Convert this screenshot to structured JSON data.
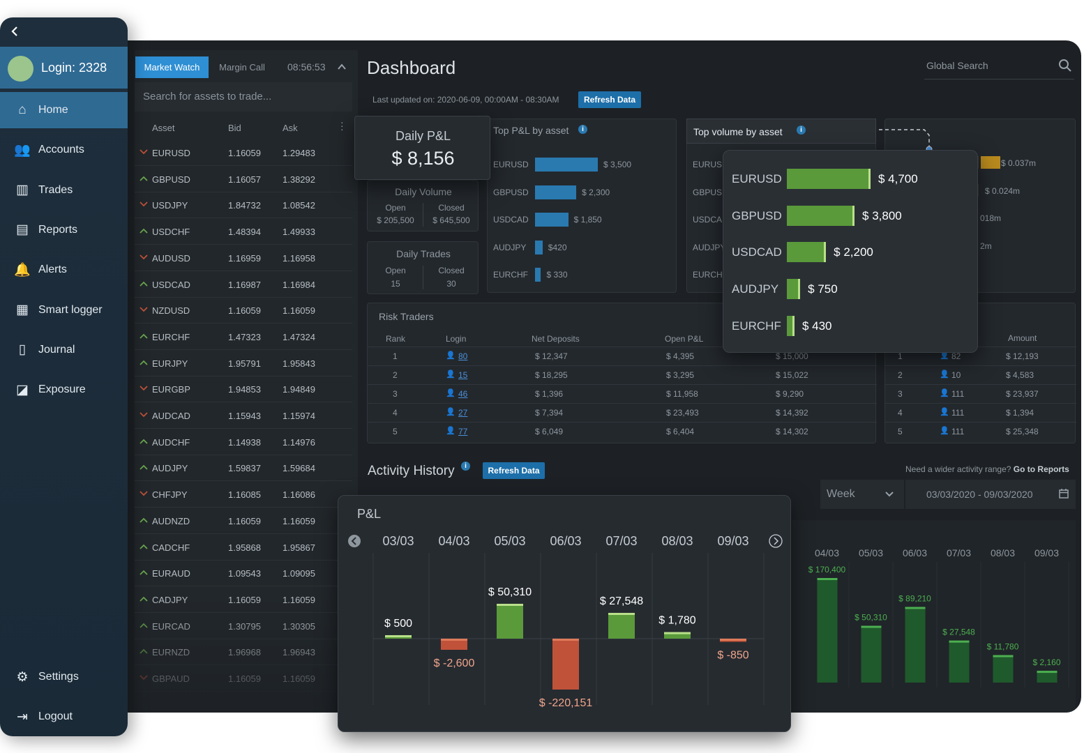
{
  "sidebar": {
    "login_label": "Login: 2328",
    "items": [
      {
        "label": "Home",
        "icon": "home-icon",
        "glyph": "⌂"
      },
      {
        "label": "Accounts",
        "icon": "users-icon",
        "glyph": "👥"
      },
      {
        "label": "Trades",
        "icon": "bar-chart-icon",
        "glyph": "▥"
      },
      {
        "label": "Reports",
        "icon": "report-icon",
        "glyph": "▤"
      },
      {
        "label": "Alerts",
        "icon": "bell-icon",
        "glyph": "🔔"
      },
      {
        "label": "Smart logger",
        "icon": "clipboard-icon",
        "glyph": "▦"
      },
      {
        "label": "Journal",
        "icon": "book-icon",
        "glyph": "▯"
      },
      {
        "label": "Exposure",
        "icon": "exposure-icon",
        "glyph": "◪"
      }
    ],
    "settings_label": "Settings",
    "logout_label": "Logout"
  },
  "market_watch": {
    "tab_active": "Market Watch",
    "tab_inactive": "Margin Call",
    "time": "08:56:53",
    "search_placeholder": "Search for assets to trade...",
    "col_asset": "Asset",
    "col_bid": "Bid",
    "col_ask": "Ask",
    "rows": [
      {
        "dir": "down",
        "asset": "EURUSD",
        "bid": "1.16059",
        "ask": "1.29483"
      },
      {
        "dir": "up",
        "asset": "GBPUSD",
        "bid": "1.16057",
        "ask": "1.38292"
      },
      {
        "dir": "down",
        "asset": "USDJPY",
        "bid": "1.84732",
        "ask": "1.08542"
      },
      {
        "dir": "up",
        "asset": "USDCHF",
        "bid": "1.48394",
        "ask": "1.49933"
      },
      {
        "dir": "down",
        "asset": "AUDUSD",
        "bid": "1.16959",
        "ask": "1.16958"
      },
      {
        "dir": "up",
        "asset": "USDCAD",
        "bid": "1.16987",
        "ask": "1.16984"
      },
      {
        "dir": "down",
        "asset": "NZDUSD",
        "bid": "1.16059",
        "ask": "1.16059"
      },
      {
        "dir": "up",
        "asset": "EURCHF",
        "bid": "1.47323",
        "ask": "1.47324"
      },
      {
        "dir": "up",
        "asset": "EURJPY",
        "bid": "1.95791",
        "ask": "1.95843"
      },
      {
        "dir": "down",
        "asset": "EURGBP",
        "bid": "1.94853",
        "ask": "1.94849"
      },
      {
        "dir": "down",
        "asset": "AUDCAD",
        "bid": "1.15943",
        "ask": "1.15974"
      },
      {
        "dir": "up",
        "asset": "AUDCHF",
        "bid": "1.14938",
        "ask": "1.14976"
      },
      {
        "dir": "up",
        "asset": "AUDJPY",
        "bid": "1.59837",
        "ask": "1.59684"
      },
      {
        "dir": "down",
        "asset": "CHFJPY",
        "bid": "1.16085",
        "ask": "1.16086"
      },
      {
        "dir": "up",
        "asset": "AUDNZD",
        "bid": "1.16059",
        "ask": "1.16059"
      },
      {
        "dir": "up",
        "asset": "CADCHF",
        "bid": "1.95868",
        "ask": "1.95867"
      },
      {
        "dir": "up",
        "asset": "EURAUD",
        "bid": "1.09543",
        "ask": "1.09095"
      },
      {
        "dir": "up",
        "asset": "CADJPY",
        "bid": "1.16059",
        "ask": "1.16059"
      },
      {
        "dir": "up",
        "asset": "EURCAD",
        "bid": "1.30795",
        "ask": "1.30305"
      },
      {
        "dir": "up",
        "asset": "EURNZD",
        "bid": "1.96968",
        "ask": "1.96943"
      },
      {
        "dir": "down",
        "asset": "GBPAUD",
        "bid": "1.16059",
        "ask": "1.16059"
      }
    ]
  },
  "dashboard": {
    "title": "Dashboard",
    "global_search_placeholder": "Global Search",
    "last_updated": "Last updated on: 2020-06-09, 00:00AM - 08:30AM",
    "refresh_label": "Refresh Data",
    "daily_pl": {
      "label": "Daily P&L",
      "value": "$ 8,156"
    },
    "daily_volume": {
      "label": "Daily Volume",
      "open_label": "Open",
      "open_value": "$ 205,500",
      "closed_label": "Closed",
      "closed_value": "$ 645,500"
    },
    "daily_trades": {
      "label": "Daily Trades",
      "open_label": "Open",
      "open_value": "15",
      "closed_label": "Closed",
      "closed_value": "30"
    },
    "top_pl": {
      "title": "Top P&L by asset",
      "rows": [
        {
          "asset": "EURUSD",
          "value": 3500,
          "label": "$ 3,500"
        },
        {
          "asset": "GBPUSD",
          "value": 2300,
          "label": "$ 2,300"
        },
        {
          "asset": "USDCAD",
          "value": 1850,
          "label": "$ 1,850"
        },
        {
          "asset": "AUDJPY",
          "value": 420,
          "label": "$420"
        },
        {
          "asset": "EURCHF",
          "value": 330,
          "label": "$ 330"
        }
      ]
    },
    "top_volume": {
      "title": "Top volume by asset",
      "bg_assets": [
        "EURUSD",
        "GBPUSD",
        "USDCAD",
        "AUDJPY",
        "EURCHF"
      ],
      "rows": [
        {
          "asset": "EURUSD",
          "value": 4700,
          "label": "$ 4,700"
        },
        {
          "asset": "GBPUSD",
          "value": 3800,
          "label": "$ 3,800"
        },
        {
          "asset": "USDCAD",
          "value": 2200,
          "label": "$ 2,200"
        },
        {
          "asset": "AUDJPY",
          "value": 750,
          "label": "$ 750"
        },
        {
          "asset": "EURCHF",
          "value": 430,
          "label": "$ 430"
        }
      ]
    },
    "right_card_values": [
      "$ 0.037m",
      "$ 0.024m",
      "018m",
      "2m"
    ],
    "risk_traders": {
      "title": "Risk Traders",
      "cols": [
        "Rank",
        "Login",
        "Net Deposits",
        "Open P&L"
      ],
      "rows": [
        {
          "rank": "1",
          "login": "80",
          "net": "$ 12,347",
          "open": "$ 4,395",
          "extra": "$ 15,000"
        },
        {
          "rank": "2",
          "login": "15",
          "net": "$ 18,295",
          "open": "$ 3,295",
          "extra": "$ 15,022"
        },
        {
          "rank": "3",
          "login": "46",
          "net": "$ 1,396",
          "open": "$ 11,958",
          "extra": "$ 9,290"
        },
        {
          "rank": "4",
          "login": "27",
          "net": "$ 7,394",
          "open": "$ 23,493",
          "extra": "$ 14,392"
        },
        {
          "rank": "5",
          "login": "77",
          "net": "$ 6,049",
          "open": "$ 6,404",
          "extra": "$ 14,302"
        }
      ]
    },
    "amount_table": {
      "col_amount": "Amount",
      "rows": [
        {
          "rank": "1",
          "login": "82",
          "amount": "$ 12,193"
        },
        {
          "rank": "2",
          "login": "10",
          "amount": "$ 4,583"
        },
        {
          "rank": "3",
          "login": "111",
          "amount": "$ 23,937"
        },
        {
          "rank": "4",
          "login": "111",
          "amount": "$ 1,394"
        },
        {
          "rank": "5",
          "login": "111",
          "amount": "$ 25,348"
        }
      ]
    },
    "activity": {
      "title": "Activity History",
      "refresh_label": "Refresh Data",
      "wider_prefix": "Need a wider activity range?",
      "wider_link": "Go to Reports",
      "period": "Week",
      "date_range": "03/03/2020 - 09/03/2020"
    },
    "colors": {
      "accent": "#2f6a93",
      "positive": "#5a9a3a",
      "negative": "#c0523a",
      "bar_blue": "#2a7ab0"
    }
  },
  "chart_data": [
    {
      "type": "bar",
      "title": "P&L",
      "categories": [
        "03/03",
        "04/03",
        "05/03",
        "06/03",
        "07/03",
        "08/03",
        "09/03"
      ],
      "values": [
        500,
        -2600,
        50310,
        -220151,
        27548,
        1780,
        -850
      ],
      "labels": [
        "$ 500",
        "$ -2,600",
        "$ 50,310",
        "$ -220,151",
        "$ 27,548",
        "$ 1,780",
        "$ -850"
      ]
    },
    {
      "type": "bar",
      "categories": [
        "04/03",
        "05/03",
        "06/03",
        "07/03",
        "08/03",
        "09/03"
      ],
      "values": [
        170400,
        50310,
        89210,
        27548,
        11780,
        2160
      ],
      "labels": [
        "$ 170,400",
        "$ 50,310",
        "$ 89,210",
        "$ 27,548",
        "$ 11,780",
        "$ 2,160"
      ]
    }
  ]
}
